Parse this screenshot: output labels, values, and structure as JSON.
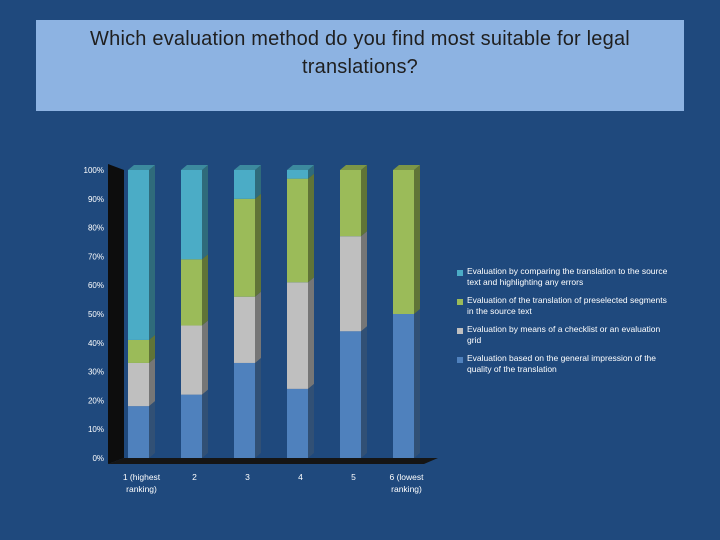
{
  "slide": {
    "title": "Which evaluation method do you find most suitable for legal translations?"
  },
  "chart_data": {
    "type": "stacked-bar-100",
    "title": "Which evaluation method do you find most suitable for legal translations?",
    "categories": [
      "1 (highest ranking)",
      "2",
      "3",
      "4",
      "5",
      "6 (lowest ranking)"
    ],
    "y_ticks": [
      "0%",
      "10%",
      "20%",
      "30%",
      "40%",
      "50%",
      "60%",
      "70%",
      "80%",
      "90%",
      "100%"
    ],
    "ylim": [
      0,
      100
    ],
    "legend_position": "right",
    "series": [
      {
        "name": "Evaluation based on the general impression of the quality of the translation",
        "color": "#4f81bd",
        "values": [
          18,
          22,
          33,
          24,
          44,
          50
        ]
      },
      {
        "name": "Evaluation by means of a checklist or an evaluation grid",
        "color": "#bfbfbf",
        "values": [
          15,
          24,
          23,
          37,
          33,
          0
        ]
      },
      {
        "name": "Evaluation of the translation of preselected segments in the source text",
        "color": "#9bbb59",
        "values": [
          8,
          23,
          34,
          36,
          23,
          50
        ]
      },
      {
        "name": "Evaluation by comparing the translation to the source text and highlighting any errors",
        "color": "#4bacc6",
        "values": [
          59,
          31,
          10,
          3,
          0,
          0
        ]
      }
    ],
    "legend": [
      {
        "label": "Evaluation by comparing the translation to the source text and highlighting any errors",
        "color": "#4bacc6"
      },
      {
        "label": "Evaluation of the translation of preselected segments in the source text",
        "color": "#9bbb59"
      },
      {
        "label": "Evaluation by means of a checklist or an evaluation grid",
        "color": "#bfbfbf"
      },
      {
        "label": "Evaluation based on the general impression of the quality of the translation",
        "color": "#4f81bd"
      }
    ]
  }
}
